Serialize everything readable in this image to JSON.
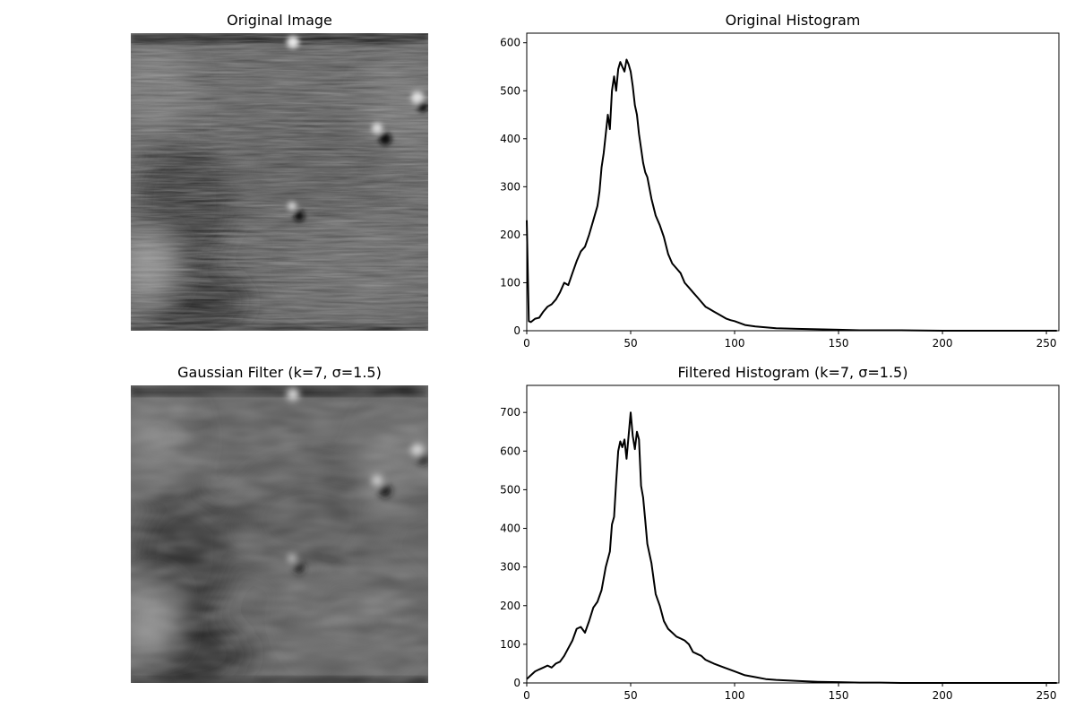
{
  "panels": {
    "original_image": {
      "title": "Original Image"
    },
    "filtered_image": {
      "title": "Gaussian Filter (k=7, σ=1.5)"
    }
  },
  "chart_data": [
    {
      "type": "line",
      "title": "Original Histogram",
      "xlabel": "",
      "ylabel": "",
      "xlim": [
        0,
        256
      ],
      "ylim": [
        0,
        620
      ],
      "xticks": [
        0,
        50,
        100,
        150,
        200,
        250
      ],
      "yticks": [
        0,
        100,
        200,
        300,
        400,
        500,
        600
      ],
      "grid": false,
      "line_color": "#000000",
      "series": [
        {
          "x": [
            0,
            1,
            2,
            4,
            6,
            8,
            10,
            12,
            14,
            16,
            18,
            20,
            22,
            24,
            26,
            28,
            30,
            32,
            34,
            35,
            36,
            37,
            38,
            39,
            40,
            41,
            42,
            43,
            44,
            45,
            46,
            47,
            48,
            49,
            50,
            51,
            52,
            53,
            54,
            55,
            56,
            57,
            58,
            60,
            62,
            64,
            66,
            68,
            70,
            72,
            74,
            76,
            78,
            80,
            82,
            84,
            86,
            88,
            90,
            92,
            94,
            96,
            98,
            100,
            105,
            110,
            115,
            120,
            130,
            140,
            150,
            160,
            180,
            200,
            220,
            255
          ],
          "values": [
            230,
            20,
            18,
            25,
            27,
            40,
            50,
            55,
            65,
            80,
            100,
            95,
            120,
            145,
            165,
            175,
            200,
            230,
            260,
            290,
            340,
            370,
            410,
            450,
            420,
            500,
            530,
            500,
            545,
            560,
            550,
            540,
            565,
            555,
            540,
            510,
            470,
            450,
            410,
            380,
            350,
            330,
            320,
            275,
            240,
            220,
            195,
            160,
            140,
            130,
            120,
            100,
            90,
            80,
            70,
            60,
            50,
            45,
            40,
            35,
            30,
            25,
            22,
            20,
            12,
            9,
            7,
            5,
            4,
            3,
            2,
            1,
            1,
            0,
            0,
            0
          ]
        }
      ]
    },
    {
      "type": "line",
      "title": "Filtered Histogram (k=7, σ=1.5)",
      "xlabel": "",
      "ylabel": "",
      "xlim": [
        0,
        256
      ],
      "ylim": [
        0,
        770
      ],
      "xticks": [
        0,
        50,
        100,
        150,
        200,
        250
      ],
      "yticks": [
        0,
        100,
        200,
        300,
        400,
        500,
        600,
        700
      ],
      "grid": false,
      "line_color": "#000000",
      "series": [
        {
          "x": [
            0,
            2,
            4,
            6,
            8,
            10,
            12,
            14,
            16,
            18,
            20,
            22,
            24,
            26,
            28,
            30,
            32,
            34,
            36,
            38,
            40,
            41,
            42,
            43,
            44,
            45,
            46,
            47,
            48,
            49,
            50,
            51,
            52,
            53,
            54,
            55,
            56,
            57,
            58,
            60,
            62,
            64,
            66,
            68,
            70,
            72,
            74,
            76,
            78,
            80,
            82,
            84,
            86,
            88,
            90,
            95,
            100,
            105,
            110,
            115,
            120,
            130,
            140,
            150,
            160,
            170,
            180,
            200,
            255
          ],
          "values": [
            10,
            20,
            30,
            35,
            40,
            45,
            40,
            50,
            55,
            70,
            90,
            110,
            140,
            145,
            130,
            160,
            195,
            210,
            240,
            300,
            340,
            410,
            430,
            520,
            600,
            625,
            610,
            630,
            580,
            640,
            700,
            640,
            605,
            650,
            630,
            510,
            480,
            420,
            360,
            310,
            230,
            200,
            160,
            140,
            130,
            120,
            115,
            110,
            100,
            80,
            75,
            70,
            60,
            55,
            50,
            40,
            30,
            20,
            15,
            10,
            8,
            5,
            3,
            2,
            1,
            1,
            0,
            0,
            0
          ]
        }
      ]
    }
  ]
}
